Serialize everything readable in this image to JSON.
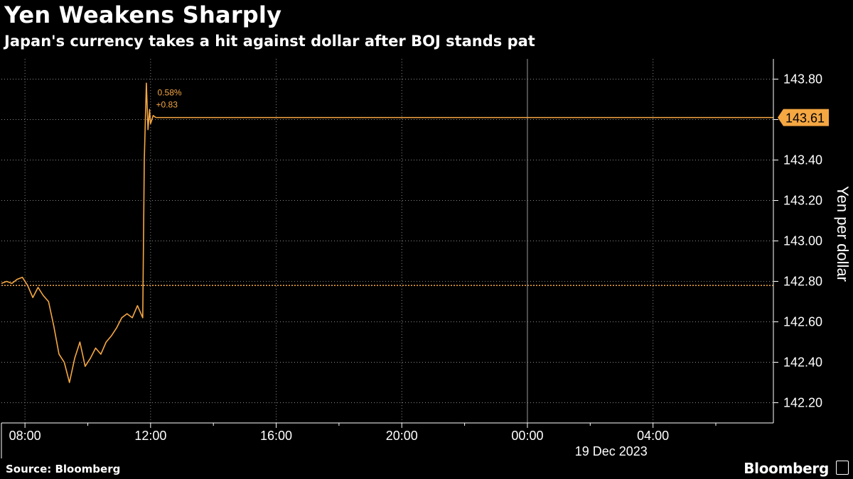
{
  "title": "Yen Weakens Sharply",
  "subtitle": "Japan's currency takes a hit against dollar after BOJ stands pat",
  "footer": {
    "source": "Source: Bloomberg",
    "brand": "Bloomberg"
  },
  "colors": {
    "background": "#000000",
    "line": "#f5a742",
    "grid": "#8a8a8a",
    "text": "#ffffff"
  },
  "chart_data": {
    "type": "line",
    "title": "Yen Weakens Sharply",
    "subtitle": "Japan's currency takes a hit against dollar after BOJ stands pat",
    "ylabel": "Yen per dollar",
    "xlabel": "19 Dec 2023",
    "date_label": "19 Dec 2023",
    "ylim": [
      142.1,
      143.9
    ],
    "xlim": [
      "07:15",
      "31:50"
    ],
    "y_ticks": [
      "142.20",
      "142.40",
      "142.60",
      "142.80",
      "143.00",
      "143.20",
      "143.40",
      "143.60",
      "143.80"
    ],
    "x_ticks": [
      "08:00",
      "12:00",
      "16:00",
      "20:00",
      "00:00",
      "04:00"
    ],
    "grid": true,
    "last_value_label": "143.61",
    "reference_level": 142.78,
    "annotation": {
      "percent": "0.58%",
      "change": "+0.83"
    },
    "series": [
      {
        "name": "",
        "color": "#f5a742",
        "x": [
          "07:15",
          "07:25",
          "07:35",
          "07:45",
          "07:55",
          "08:05",
          "08:15",
          "08:25",
          "08:35",
          "08:45",
          "08:55",
          "09:05",
          "09:15",
          "09:25",
          "09:35",
          "09:45",
          "09:55",
          "10:05",
          "10:15",
          "10:25",
          "10:35",
          "10:45",
          "10:55",
          "11:05",
          "11:15",
          "11:25",
          "11:35",
          "11:45",
          "11:48",
          "11:50",
          "11:52",
          "11:55",
          "11:58",
          "12:00",
          "12:05",
          "12:10"
        ],
        "y": [
          142.79,
          142.8,
          142.79,
          142.81,
          142.82,
          142.78,
          142.72,
          142.77,
          142.73,
          142.7,
          142.58,
          142.44,
          142.4,
          142.3,
          142.42,
          142.5,
          142.38,
          142.42,
          142.47,
          142.44,
          142.5,
          142.53,
          142.57,
          142.62,
          142.64,
          142.62,
          142.68,
          142.62,
          143.4,
          143.6,
          143.78,
          143.55,
          143.65,
          143.58,
          143.62,
          143.61
        ]
      }
    ]
  }
}
